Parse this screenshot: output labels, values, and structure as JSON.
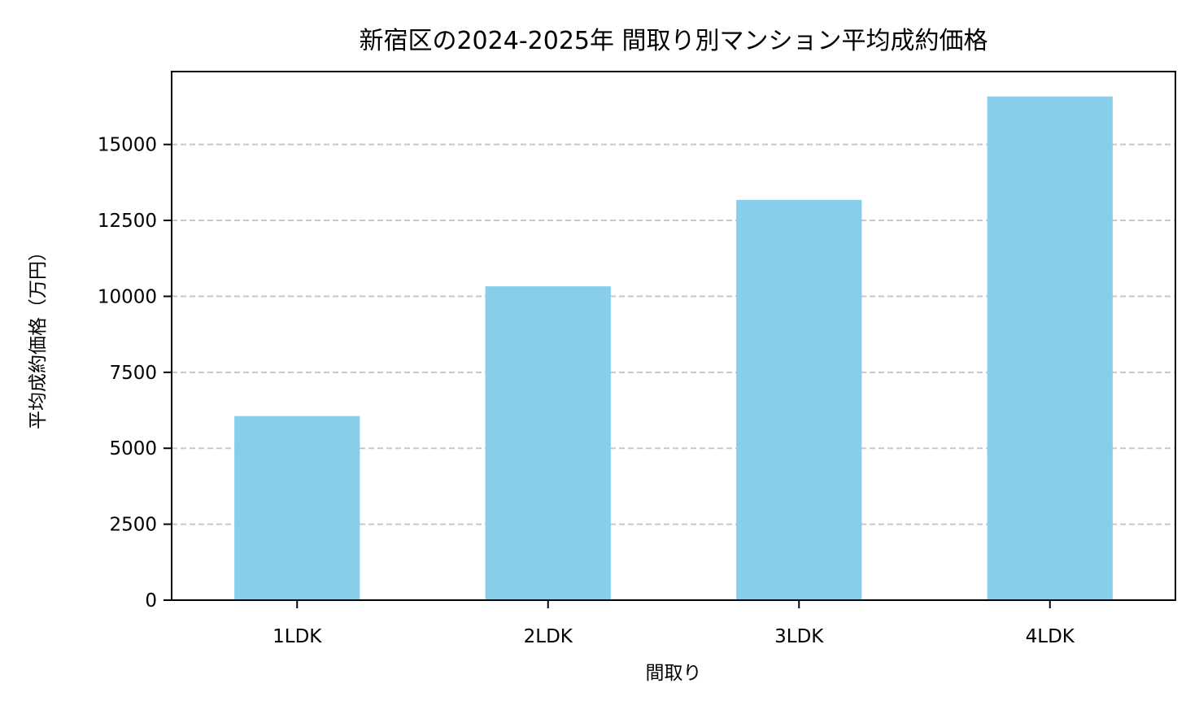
{
  "chart_data": {
    "type": "bar",
    "title": "新宿区の2024-2025年 間取り別マンション平均成約価格",
    "xlabel": "間取り",
    "ylabel": "平均成約価格（万円）",
    "categories": [
      "1LDK",
      "2LDK",
      "3LDK",
      "4LDK"
    ],
    "values": [
      6060,
      10330,
      13175,
      16580
    ],
    "ylim": [
      0,
      17400
    ],
    "yticks": [
      0,
      2500,
      5000,
      7500,
      10000,
      12500,
      15000
    ],
    "grid": "y dashed",
    "bar_color": "#87CEEB",
    "grid_color": "#c8c8c8"
  }
}
